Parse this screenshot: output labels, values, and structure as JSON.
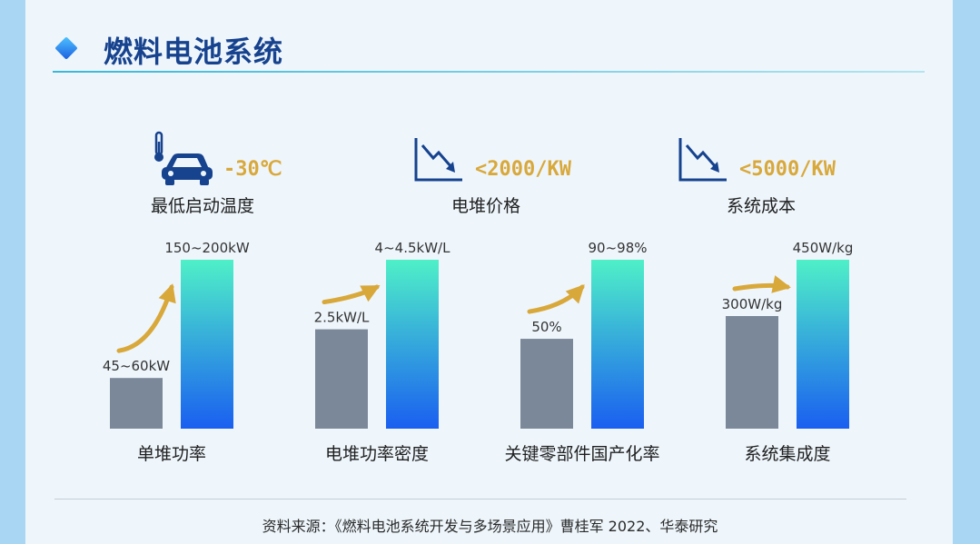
{
  "header": {
    "title": "燃料电池系统"
  },
  "metrics": [
    {
      "value": "-30℃",
      "label": "最低启动温度",
      "icon": "car-thermometer-icon"
    },
    {
      "value": "<2000/KW",
      "label": "电堆价格",
      "icon": "downtrend-chart-icon"
    },
    {
      "value": "<5000/KW",
      "label": "系统成本",
      "icon": "downtrend-chart-icon"
    }
  ],
  "colors": {
    "before_bar": "#7b8899",
    "after_bar_top": "#4ff0c8",
    "after_bar_bottom": "#1a5ff0",
    "arrow": "#d9a83a",
    "accent_text": "#d9a83a"
  },
  "chart_data": {
    "type": "bar",
    "groups": [
      {
        "category": "单堆功率",
        "before_label": "45~60kW",
        "after_label": "150~200kW",
        "before": 52.5,
        "after": 175
      },
      {
        "category": "电堆功率密度",
        "before_label": "2.5kW/L",
        "after_label": "4~4.5kW/L",
        "before": 2.5,
        "after": 4.25
      },
      {
        "category": "关键零部件国产化率",
        "before_label": "50%",
        "after_label": "90~98%",
        "before": 50,
        "after": 94
      },
      {
        "category": "系统集成度",
        "before_label": "300W/kg",
        "after_label": "450W/kg",
        "before": 300,
        "after": 450
      }
    ]
  },
  "footer": {
    "source": "资料来源：《燃料电池系统开发与多场景应用》曹桂军 2022、华泰研究"
  }
}
